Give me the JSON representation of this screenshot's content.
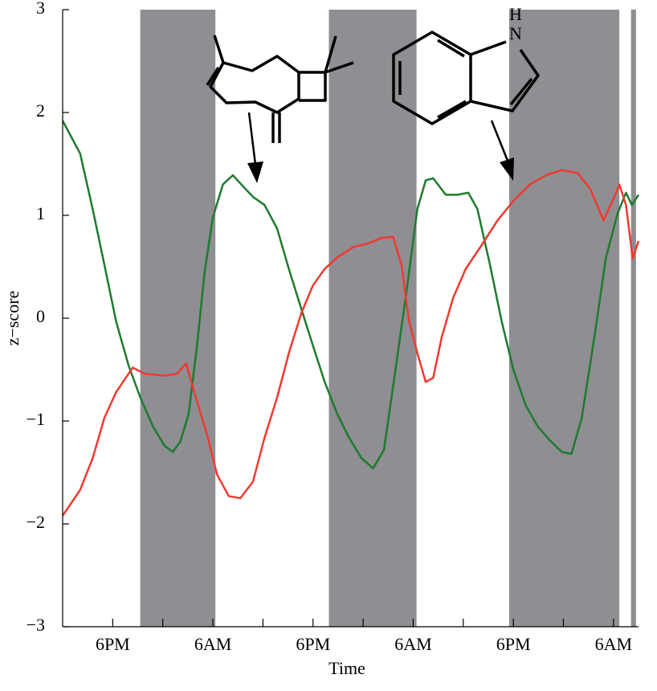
{
  "chart_data": {
    "type": "line",
    "xlabel": "Time",
    "ylabel": "z−score",
    "annotations": [
      "H",
      "N"
    ],
    "xlim": [
      0,
      69
    ],
    "ylim": [
      -3,
      3
    ],
    "xticks": [
      {
        "value": 6,
        "label": "6PM"
      },
      {
        "value": 18,
        "label": "6AM"
      },
      {
        "value": 30,
        "label": "6PM"
      },
      {
        "value": 42,
        "label": "6AM"
      },
      {
        "value": 54,
        "label": "6PM"
      },
      {
        "value": 66,
        "label": "6AM"
      }
    ],
    "xminorticks": [
      12,
      24,
      36,
      48,
      60
    ],
    "yticks": [
      {
        "value": -3,
        "label": "−3"
      },
      {
        "value": -2,
        "label": "−2"
      },
      {
        "value": -1,
        "label": "−1"
      },
      0,
      1,
      2,
      3
    ],
    "shaded_regions": [
      [
        9.3,
        18.3
      ],
      [
        31.9,
        42.4
      ],
      [
        53.5,
        66.7
      ],
      [
        68.1,
        68.7
      ]
    ],
    "shade_color": "#8e8e93",
    "series": [
      {
        "color": "#1f7a2e",
        "x": [
          0,
          2.1,
          3.6,
          5,
          6.4,
          7.9,
          9.3,
          10.8,
          12.2,
          13.2,
          14.1,
          15.1,
          16.1,
          17,
          18,
          19.2,
          20.4,
          21.3,
          22.8,
          24.2,
          25.7,
          27.1,
          28.6,
          30,
          31.4,
          32.9,
          34.3,
          35.8,
          37.2,
          38.5,
          39.6,
          41.1,
          42.5,
          43.5,
          44.4,
          45.9,
          47.3,
          48.6,
          49.7,
          51.2,
          52.6,
          54,
          55.5,
          56.9,
          58.4,
          59.8,
          60.96,
          62.2,
          63.7,
          65.1,
          66.5,
          67.5,
          68.2,
          69
        ],
        "values": [
          1.92,
          1.6,
          1.06,
          0.52,
          -0.03,
          -0.46,
          -0.77,
          -1.05,
          -1.24,
          -1.3,
          -1.2,
          -0.93,
          -0.27,
          0.44,
          0.98,
          1.3,
          1.39,
          1.31,
          1.18,
          1.1,
          0.87,
          0.48,
          0.09,
          -0.27,
          -0.62,
          -0.93,
          -1.16,
          -1.36,
          -1.46,
          -1.28,
          -0.66,
          0.2,
          1.06,
          1.34,
          1.36,
          1.2,
          1.2,
          1.22,
          1.06,
          0.52,
          -0.03,
          -0.5,
          -0.85,
          -1.05,
          -1.19,
          -1.3,
          -1.32,
          -0.97,
          -0.19,
          0.59,
          1.02,
          1.22,
          1.1,
          1.2
        ]
      },
      {
        "color": "#f03a2e",
        "x": [
          0,
          2.1,
          3.6,
          5,
          6.4,
          8.4,
          9.8,
          12.2,
          13.7,
          14.8,
          16.1,
          17.3,
          18.5,
          19.9,
          21.3,
          22.8,
          24.2,
          25.7,
          27.1,
          28.6,
          30,
          31.4,
          32.9,
          34.8,
          36.7,
          38.2,
          39.6,
          40.6,
          41.5,
          42.5,
          43.5,
          44.4,
          45.4,
          46.8,
          48.3,
          50.2,
          52.1,
          54,
          56,
          57.9,
          59.8,
          61.7,
          63.2,
          64.8,
          66.1,
          66.7,
          67.5,
          68.3,
          69
        ],
        "values": [
          -1.92,
          -1.67,
          -1.36,
          -0.97,
          -0.72,
          -0.48,
          -0.54,
          -0.56,
          -0.54,
          -0.44,
          -0.81,
          -1.13,
          -1.52,
          -1.73,
          -1.75,
          -1.59,
          -1.16,
          -0.77,
          -0.34,
          0.05,
          0.32,
          0.48,
          0.59,
          0.69,
          0.73,
          0.78,
          0.79,
          0.52,
          -0.03,
          -0.34,
          -0.62,
          -0.58,
          -0.19,
          0.2,
          0.48,
          0.71,
          0.95,
          1.14,
          1.3,
          1.39,
          1.44,
          1.41,
          1.26,
          0.95,
          1.18,
          1.3,
          1.1,
          0.58,
          0.75
        ]
      }
    ]
  }
}
